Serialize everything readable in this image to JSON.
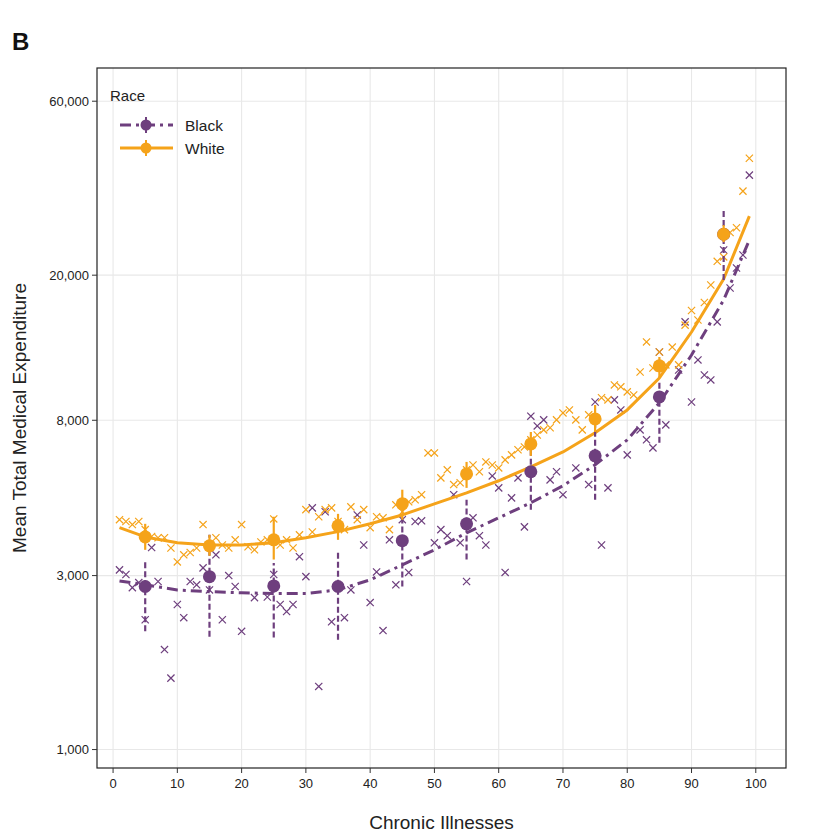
{
  "chart_data": {
    "type": "scatter",
    "panel_label": "B",
    "x_label": "Chronic Illnesses",
    "y_label": "Mean Total Medical Expenditure",
    "legend_title": "Race",
    "legend": "top-left",
    "log": "y",
    "grid": true,
    "xlim": [
      -2.5,
      104.7
    ],
    "ylim": [
      890,
      74000
    ],
    "xticks": [
      0,
      10,
      20,
      30,
      40,
      50,
      60,
      70,
      80,
      90,
      100
    ],
    "yticks": [
      {
        "value": 1000,
        "label": "1,000"
      },
      {
        "value": 3000,
        "label": "3,000"
      },
      {
        "value": 8000,
        "label": "8,000"
      },
      {
        "value": 20000,
        "label": "20,000"
      },
      {
        "value": 60000,
        "label": "60,000"
      }
    ],
    "series": [
      {
        "name": "Black",
        "color": "#6e3f7e",
        "line_style": "dashdot",
        "marker": "circle",
        "x": [
          1,
          2,
          3,
          4,
          5,
          6,
          7,
          8,
          9,
          10,
          11,
          12,
          13,
          14,
          15,
          16,
          17,
          18,
          19,
          20,
          22,
          24,
          25,
          26,
          27,
          28,
          29,
          30,
          31,
          32,
          33,
          34,
          36,
          37,
          38,
          39,
          40,
          41,
          42,
          43,
          44,
          45,
          46,
          47,
          48,
          50,
          51,
          52,
          53,
          54,
          55,
          56,
          57,
          58,
          59,
          60,
          61,
          62,
          63,
          64,
          65,
          66,
          67,
          68,
          69,
          70,
          72,
          74,
          75,
          76,
          77,
          78,
          79,
          80,
          82,
          83,
          84,
          85,
          86,
          88,
          89,
          90,
          91,
          92,
          93,
          94,
          95,
          96,
          97,
          98,
          99
        ],
        "values": [
          3110,
          3020,
          2780,
          2870,
          2270,
          3580,
          2890,
          1880,
          1570,
          2500,
          2300,
          2890,
          2830,
          3150,
          2740,
          3420,
          2270,
          3000,
          2800,
          2110,
          2610,
          2620,
          3020,
          2500,
          2390,
          2500,
          3380,
          2980,
          4600,
          1490,
          4490,
          2240,
          2300,
          2740,
          4400,
          3640,
          2530,
          3070,
          2120,
          3760,
          2830,
          4270,
          3060,
          4220,
          4240,
          3690,
          4010,
          3860,
          5000,
          3690,
          2890,
          4320,
          3860,
          3640,
          5630,
          5220,
          3060,
          4900,
          5560,
          4080,
          8210,
          7720,
          8020,
          5490,
          5780,
          5000,
          5920,
          5330,
          8980,
          3640,
          5220,
          9100,
          8540,
          6430,
          7530,
          7070,
          6720,
          12310,
          7770,
          10990,
          14890,
          8980,
          11710,
          10650,
          10320,
          14890,
          23440,
          18440,
          20930,
          22720,
          37620
        ],
        "means_x": [
          5,
          15,
          25,
          35,
          45,
          55,
          65,
          75,
          85,
          95
        ],
        "means": [
          2800,
          2980,
          2810,
          2800,
          3740,
          4160,
          5780,
          6390,
          9270,
          25900
        ],
        "ci_low": [
          2110,
          2040,
          2030,
          2000,
          2800,
          3320,
          4550,
          4840,
          6940,
          19400
        ],
        "ci_high": [
          3320,
          3880,
          3250,
          3530,
          4400,
          4840,
          7070,
          7770,
          10320,
          30170
        ],
        "fit_x": [
          1,
          5,
          10,
          15,
          20,
          25,
          30,
          35,
          40,
          45,
          50,
          55,
          60,
          65,
          70,
          75,
          80,
          85,
          90,
          95,
          99
        ],
        "fit": [
          2900,
          2830,
          2740,
          2710,
          2690,
          2680,
          2680,
          2740,
          2920,
          3210,
          3530,
          3930,
          4320,
          4750,
          5290,
          6040,
          7070,
          8930,
          12080,
          17100,
          24960
        ]
      },
      {
        "name": "White",
        "color": "#f5a31a",
        "line_style": "solid",
        "marker": "circle",
        "x": [
          1,
          2,
          3,
          4,
          5,
          6,
          7,
          8,
          9,
          10,
          11,
          12,
          13,
          14,
          15,
          16,
          17,
          18,
          19,
          20,
          21,
          22,
          23,
          24,
          25,
          26,
          27,
          28,
          29,
          30,
          31,
          32,
          33,
          34,
          35,
          36,
          37,
          38,
          39,
          40,
          41,
          42,
          43,
          44,
          45,
          46,
          47,
          48,
          49,
          50,
          51,
          52,
          53,
          54,
          55,
          56,
          57,
          58,
          59,
          60,
          61,
          62,
          63,
          64,
          65,
          66,
          67,
          68,
          69,
          70,
          71,
          72,
          73,
          74,
          75,
          76,
          77,
          78,
          79,
          80,
          81,
          82,
          83,
          84,
          85,
          86,
          87,
          88,
          89,
          90,
          91,
          92,
          93,
          94,
          95,
          96,
          97,
          98,
          99
        ],
        "values": [
          4270,
          4220,
          4140,
          4220,
          4010,
          3840,
          3810,
          3810,
          3570,
          3270,
          3420,
          3470,
          3570,
          4140,
          3600,
          3810,
          3640,
          3570,
          3760,
          4140,
          3600,
          3530,
          3710,
          3760,
          4290,
          3640,
          3760,
          3570,
          3880,
          4550,
          3950,
          4350,
          4550,
          4600,
          4220,
          4010,
          4630,
          4270,
          4550,
          4060,
          4350,
          4320,
          4010,
          4690,
          4490,
          4780,
          4840,
          5000,
          6510,
          6510,
          5560,
          5850,
          5330,
          5390,
          5850,
          6030,
          5780,
          6150,
          6030,
          5920,
          6230,
          6430,
          6640,
          6760,
          7070,
          7290,
          7530,
          7630,
          8020,
          8380,
          8540,
          8020,
          7530,
          8280,
          8020,
          9220,
          9100,
          10000,
          9880,
          9570,
          9390,
          10850,
          13120,
          11130,
          12310,
          11350,
          12700,
          11350,
          14590,
          16000,
          15070,
          16830,
          18800,
          21830,
          22440,
          26180,
          26990,
          34000,
          41860
        ],
        "means_x": [
          5,
          15,
          25,
          35,
          45,
          55,
          65,
          75,
          85,
          95
        ],
        "means": [
          3830,
          3620,
          3760,
          4110,
          4720,
          5700,
          6890,
          8070,
          11280,
          25900
        ],
        "ci_low": [
          3530,
          3400,
          3320,
          3760,
          4270,
          5220,
          6390,
          7430,
          10450,
          24650
        ],
        "ci_high": [
          4160,
          3880,
          4350,
          4430,
          5160,
          6150,
          7430,
          8810,
          11930,
          27440
        ],
        "fit_x": [
          1,
          5,
          10,
          15,
          20,
          25,
          30,
          35,
          40,
          45,
          50,
          55,
          60,
          65,
          70,
          75,
          80,
          85,
          90,
          95,
          99
        ],
        "fit": [
          4060,
          3830,
          3690,
          3640,
          3640,
          3690,
          3810,
          3960,
          4160,
          4400,
          4720,
          5060,
          5460,
          5960,
          6550,
          7390,
          8540,
          10450,
          13970,
          19520,
          29040
        ]
      }
    ]
  }
}
